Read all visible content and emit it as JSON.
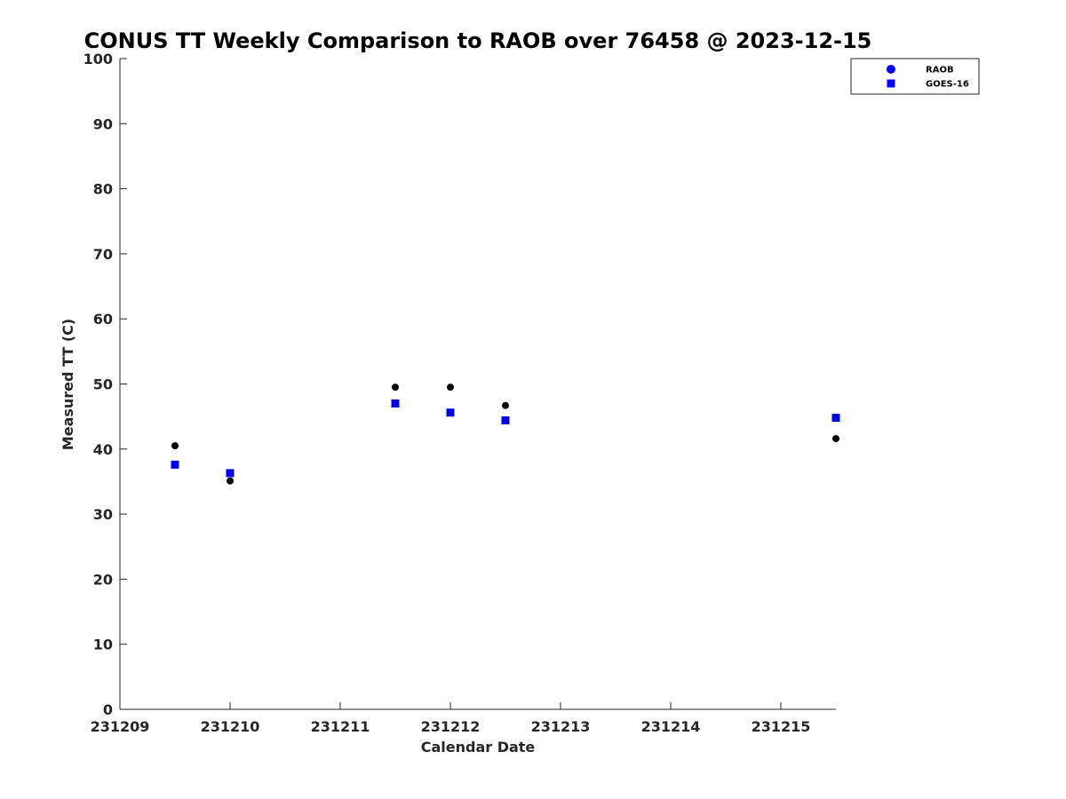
{
  "chart_data": {
    "type": "scatter",
    "title": "CONUS TT Weekly Comparison to RAOB over 76458 @ 2023-12-15",
    "xlabel": "Calendar Date",
    "ylabel": "Measured TT (C)",
    "x_ticks": [
      "231209",
      "231210",
      "231211",
      "231212",
      "231213",
      "231214",
      "231215"
    ],
    "xlim": [
      "231209",
      "231215.5"
    ],
    "ylim": [
      0,
      100
    ],
    "y_ticks": [
      0,
      10,
      20,
      30,
      40,
      50,
      60,
      70,
      80,
      90,
      100
    ],
    "y_tick_labels": [
      "0",
      "10",
      "20",
      "30",
      "40",
      "50",
      "60",
      "70",
      "80",
      "90",
      "100"
    ],
    "grid": false,
    "legend_position": "top-right",
    "series": [
      {
        "name": "RAOB",
        "marker": "circle",
        "color": "#000000",
        "legend_color": "#0000ff",
        "points": [
          {
            "x": "231209.5",
            "y": 40.5
          },
          {
            "x": "231210",
            "y": 35.1
          },
          {
            "x": "231211.5",
            "y": 49.5
          },
          {
            "x": "231212",
            "y": 49.5
          },
          {
            "x": "231212.5",
            "y": 46.7
          },
          {
            "x": "231215.5",
            "y": 41.6
          }
        ]
      },
      {
        "name": "GOES-16",
        "marker": "square",
        "color": "#0000e6",
        "legend_color": "#0000ff",
        "points": [
          {
            "x": "231209.5",
            "y": 37.6
          },
          {
            "x": "231210",
            "y": 36.3
          },
          {
            "x": "231211.5",
            "y": 47.0
          },
          {
            "x": "231212",
            "y": 45.6
          },
          {
            "x": "231212.5",
            "y": 44.4
          },
          {
            "x": "231215.5",
            "y": 44.8
          }
        ]
      }
    ]
  }
}
